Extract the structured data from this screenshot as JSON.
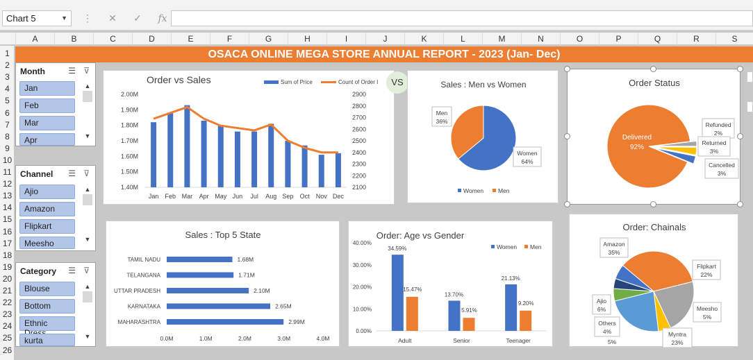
{
  "namebox": {
    "value": "Chart 5"
  },
  "columns": [
    "A",
    "B",
    "C",
    "D",
    "E",
    "F",
    "G",
    "H",
    "I",
    "J",
    "K",
    "L",
    "M",
    "N",
    "O",
    "P",
    "Q",
    "R",
    "S"
  ],
  "rows": [
    "1",
    "2",
    "3",
    "4",
    "5",
    "6",
    "7",
    "8",
    "9",
    "10",
    "11",
    "12",
    "13",
    "14",
    "15",
    "16",
    "17",
    "18",
    "19",
    "20",
    "21",
    "22",
    "23",
    "24",
    "25",
    "26"
  ],
  "report_title": "OSACA ONLINE MEGA STORE ANNUAL REPORT -  2023 (Jan- Dec)",
  "vs_badge": "VS",
  "slicers": [
    {
      "title": "Month",
      "items": [
        "Jan",
        "Feb",
        "Mar",
        "Apr"
      ]
    },
    {
      "title": "Channel",
      "items": [
        "Ajio",
        "Amazon",
        "Flipkart",
        "Meesho"
      ]
    },
    {
      "title": "Category",
      "items": [
        "Blouse",
        "Bottom",
        "Ethnic Dress",
        "kurta"
      ]
    }
  ],
  "colors": {
    "blue": "#4472c4",
    "orange": "#ed7d31",
    "gray": "#a5a5a5",
    "yellow": "#ffc000",
    "lightblue": "#5b9bd5",
    "green": "#70ad47",
    "navy": "#264478",
    "title_bar": "#ed7d31"
  },
  "chart_data": [
    {
      "type": "bar",
      "title": "Order vs Sales",
      "categories": [
        "Jan",
        "Feb",
        "Mar",
        "Apr",
        "May",
        "Jun",
        "Jul",
        "Aug",
        "Sep",
        "Oct",
        "Nov",
        "Dec"
      ],
      "series": [
        {
          "name": "Sum of Price",
          "values": [
            1.82,
            1.88,
            1.93,
            1.83,
            1.8,
            1.76,
            1.76,
            1.81,
            1.7,
            1.67,
            1.61,
            1.62
          ],
          "axis": "left"
        },
        {
          "name": "Count of Order I",
          "values": [
            2690,
            2740,
            2790,
            2690,
            2630,
            2610,
            2590,
            2640,
            2500,
            2440,
            2400,
            2400
          ],
          "axis": "right",
          "type": "line"
        }
      ],
      "y_ticks": [
        "2.00M",
        "1.90M",
        "1.80M",
        "1.70M",
        "1.60M",
        "1.50M",
        "1.40M"
      ],
      "ylim": [
        1.4,
        2.0
      ],
      "y2_ticks": [
        "2900",
        "2800",
        "2700",
        "2600",
        "2500",
        "2400",
        "2300",
        "2200",
        "2100"
      ],
      "y2lim": [
        2100,
        2900
      ],
      "legend": "top-right"
    },
    {
      "type": "pie",
      "title": "Sales : Men vs Women",
      "slices": [
        {
          "name": "Women",
          "value": 64,
          "label": "64%"
        },
        {
          "name": "Men",
          "value": 36,
          "label": "36%"
        }
      ],
      "legend": "bottom"
    },
    {
      "type": "pie",
      "title": "Order Status",
      "slices": [
        {
          "name": "Delivered",
          "value": 92,
          "label": "92%"
        },
        {
          "name": "Refunded",
          "value": 2,
          "label": "2%"
        },
        {
          "name": "Returned",
          "value": 3,
          "label": "3%"
        },
        {
          "name": "Cancelled",
          "value": 3,
          "label": "3%"
        }
      ]
    },
    {
      "type": "bar",
      "orientation": "horizontal",
      "title": "Sales : Top 5 State",
      "categories": [
        "TAMIL NADU",
        "TELANGANA",
        "UTTAR PRADESH",
        "KARNATAKA",
        "MAHARASHTRA"
      ],
      "values": [
        1.68,
        1.71,
        2.1,
        2.65,
        2.99
      ],
      "data_labels": [
        "1.68M",
        "1.71M",
        "2.10M",
        "2.65M",
        "2.99M"
      ],
      "x_ticks": [
        "0.0M",
        "1.0M",
        "2.0M",
        "3.0M",
        "4.0M"
      ],
      "xlim": [
        0,
        4.0
      ]
    },
    {
      "type": "bar",
      "title": "Order: Age vs Gender",
      "categories": [
        "Adult",
        "Senior",
        "Teenager"
      ],
      "series": [
        {
          "name": "Women",
          "values": [
            34.59,
            13.7,
            21.13
          ],
          "labels": [
            "34.59%",
            "13.70%",
            "21.13%"
          ]
        },
        {
          "name": "Men",
          "values": [
            15.47,
            5.91,
            9.2
          ],
          "labels": [
            "15.47%",
            "5.91%",
            "9.20%"
          ]
        }
      ],
      "y_ticks": [
        "40.00%",
        "30.00%",
        "20.00%",
        "10.00%",
        "0.00%"
      ],
      "ylim": [
        0,
        40
      ],
      "legend": "top-right"
    },
    {
      "type": "pie",
      "title": "Order: Chainals",
      "slices": [
        {
          "name": "Amazon",
          "value": 35,
          "label": "35%"
        },
        {
          "name": "Flipkart",
          "value": 22,
          "label": "22%"
        },
        {
          "name": "Meesho",
          "value": 5,
          "label": "5%"
        },
        {
          "name": "Myntra",
          "value": 23,
          "label": "23%"
        },
        {
          "name": "",
          "value": 5,
          "label": "5%"
        },
        {
          "name": "Others",
          "value": 4,
          "label": "4%"
        },
        {
          "name": "Ajio",
          "value": 6,
          "label": "6%"
        }
      ]
    }
  ]
}
